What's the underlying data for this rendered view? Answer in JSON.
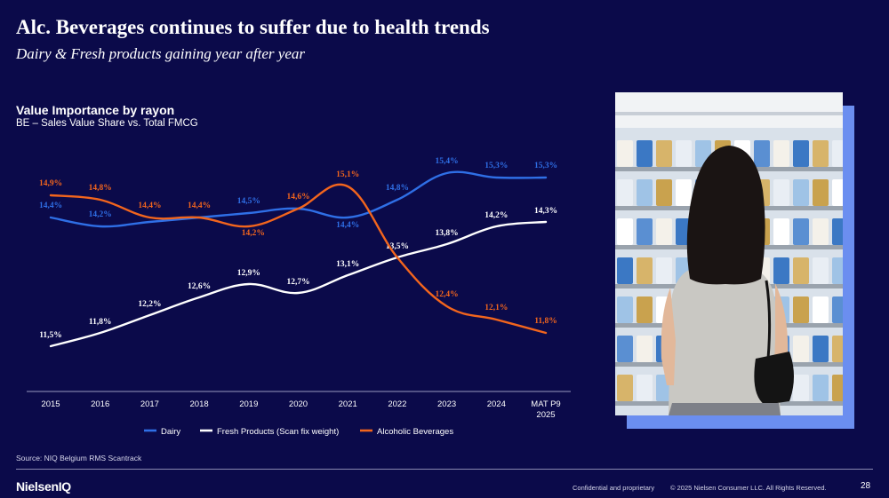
{
  "slide": {
    "title": "Alc. Beverages continues to suffer due to health trends",
    "subtitle": "Dairy & Fresh products gaining year after year",
    "chart_title": "Value Importance by rayon",
    "chart_subtitle": "BE – Sales Value Share vs. Total FMCG",
    "source": "Source: NIQ Belgium RMS Scantrack",
    "logo": "NielsenIQ",
    "confidential": "Confidential and proprietary",
    "copyright": "© 2025 Nielsen Consumer LLC. All Rights Reserved.",
    "page_number": "28"
  },
  "colors": {
    "background": "#0b0a4a",
    "dairy": "#2f6fe6",
    "fresh": "#ffffff",
    "alcoholic": "#f2651d",
    "photo_frame": "#6b8ef0"
  },
  "chart_data": {
    "type": "line",
    "categories": [
      "2015",
      "2016",
      "2017",
      "2018",
      "2019",
      "2020",
      "2021",
      "2022",
      "2023",
      "2024",
      "MAT P9 2025"
    ],
    "series": [
      {
        "name": "Dairy",
        "values": [
          14.4,
          14.2,
          14.3,
          14.4,
          14.5,
          14.6,
          14.4,
          14.8,
          15.4,
          15.3,
          15.3
        ],
        "labels": [
          "14,4%",
          "14,2%",
          "",
          "",
          "14,5%",
          "",
          "14,4%",
          "14,8%",
          "15,4%",
          "15,3%",
          "15,3%"
        ]
      },
      {
        "name": "Fresh Products (Scan fix weight)",
        "values": [
          11.5,
          11.8,
          12.2,
          12.6,
          12.9,
          12.7,
          13.1,
          13.5,
          13.8,
          14.2,
          14.3
        ],
        "labels": [
          "11,5%",
          "11,8%",
          "12,2%",
          "12,6%",
          "12,9%",
          "12,7%",
          "13,1%",
          "13,5%",
          "13,8%",
          "14,2%",
          "14,3%"
        ]
      },
      {
        "name": "Alcoholic Beverages",
        "values": [
          14.9,
          14.8,
          14.4,
          14.4,
          14.2,
          14.6,
          15.1,
          13.5,
          12.4,
          12.1,
          11.8
        ],
        "labels": [
          "14,9%",
          "14,8%",
          "14,4%",
          "14,4%",
          "14,2%",
          "14,6%",
          "15,1%",
          "",
          "12,4%",
          "12,1%",
          "11,8%"
        ]
      }
    ],
    "legend_position": "bottom",
    "grid": false
  }
}
